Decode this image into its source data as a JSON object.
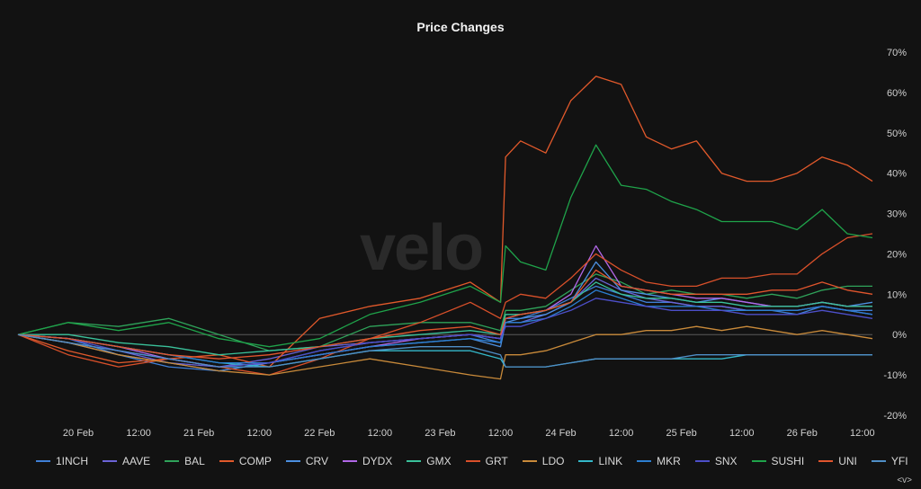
{
  "title": "Price Changes",
  "watermark": "velo",
  "corner_control": "<v>",
  "chart_data": {
    "type": "line",
    "title": "Price Changes",
    "xlabel": "",
    "ylabel": "",
    "ylim": [
      -20,
      70
    ],
    "y_ticks": [
      "70%",
      "60%",
      "50%",
      "40%",
      "30%",
      "20%",
      "10%",
      "0%",
      "-10%",
      "-20%"
    ],
    "x_ticks": [
      "20 Feb",
      "12:00",
      "21 Feb",
      "12:00",
      "22 Feb",
      "12:00",
      "23 Feb",
      "12:00",
      "24 Feb",
      "12:00",
      "25 Feb",
      "12:00",
      "26 Feb",
      "12:00"
    ],
    "x_tick_positions": [
      12,
      24,
      36,
      48,
      60,
      72,
      84,
      96,
      108,
      120,
      132,
      144,
      156,
      168
    ],
    "x_range": [
      0,
      170
    ],
    "x": [
      0,
      10,
      20,
      30,
      40,
      50,
      60,
      70,
      80,
      90,
      96,
      97,
      100,
      105,
      110,
      115,
      120,
      125,
      130,
      135,
      140,
      145,
      150,
      155,
      160,
      165,
      170
    ],
    "legend_position": "bottom",
    "series": [
      {
        "name": "1INCH",
        "color": "#3f7fd6",
        "values": [
          0,
          -1,
          -5,
          -8,
          -9,
          -7,
          -4,
          -2,
          -1,
          0,
          -2,
          4,
          4,
          6,
          9,
          12,
          10,
          8,
          8,
          7,
          7,
          6,
          6,
          5,
          7,
          6,
          6
        ]
      },
      {
        "name": "AAVE",
        "color": "#6b63d6",
        "values": [
          0,
          -2,
          -4,
          -7,
          -8,
          -6,
          -3,
          -2,
          -1,
          0,
          -1,
          3,
          3,
          5,
          8,
          14,
          11,
          9,
          8,
          7,
          7,
          6,
          6,
          6,
          7,
          6,
          5
        ]
      },
      {
        "name": "BAL",
        "color": "#2fa35a",
        "values": [
          0,
          3,
          2,
          4,
          0,
          -4,
          -3,
          2,
          3,
          3,
          1,
          6,
          6,
          7,
          11,
          15,
          13,
          10,
          11,
          10,
          10,
          9,
          10,
          9,
          11,
          12,
          12
        ]
      },
      {
        "name": "COMP",
        "color": "#e1592b",
        "values": [
          0,
          -4,
          -7,
          -6,
          -5,
          -8,
          4,
          7,
          9,
          13,
          8,
          44,
          48,
          45,
          58,
          64,
          62,
          49,
          46,
          48,
          40,
          38,
          38,
          40,
          44,
          42,
          38
        ]
      },
      {
        "name": "CRV",
        "color": "#4c8fe0",
        "values": [
          0,
          -2,
          -5,
          -7,
          -9,
          -7,
          -5,
          -3,
          -2,
          -1,
          -3,
          3,
          4,
          5,
          8,
          18,
          11,
          10,
          9,
          8,
          9,
          8,
          7,
          7,
          8,
          7,
          8
        ]
      },
      {
        "name": "DYDX",
        "color": "#b067e6",
        "values": [
          0,
          -1,
          -3,
          -6,
          -8,
          -7,
          -5,
          -3,
          -1,
          0,
          -1,
          4,
          5,
          6,
          10,
          22,
          12,
          11,
          10,
          9,
          9,
          8,
          7,
          7,
          8,
          7,
          7
        ]
      },
      {
        "name": "GMX",
        "color": "#3ac19a",
        "values": [
          0,
          0,
          -2,
          -3,
          -5,
          -4,
          -3,
          -1,
          0,
          1,
          0,
          5,
          5,
          6,
          8,
          13,
          10,
          9,
          9,
          8,
          8,
          7,
          7,
          7,
          8,
          7,
          7
        ]
      },
      {
        "name": "GRT",
        "color": "#d9502a",
        "values": [
          0,
          -5,
          -8,
          -6,
          -8,
          -10,
          -6,
          -1,
          3,
          8,
          4,
          8,
          10,
          9,
          14,
          20,
          16,
          13,
          12,
          12,
          14,
          14,
          15,
          15,
          20,
          24,
          25
        ]
      },
      {
        "name": "LDO",
        "color": "#c98a3a",
        "values": [
          0,
          -2,
          -5,
          -7,
          -9,
          -10,
          -8,
          -6,
          -8,
          -10,
          -11,
          -5,
          -5,
          -4,
          -2,
          0,
          0,
          1,
          1,
          2,
          1,
          2,
          1,
          0,
          1,
          0,
          -1
        ]
      },
      {
        "name": "LINK",
        "color": "#34b8c9",
        "values": [
          0,
          -1,
          -3,
          -5,
          -7,
          -8,
          -6,
          -4,
          -4,
          -4,
          -6,
          -8,
          -8,
          -8,
          -7,
          -6,
          -6,
          -6,
          -6,
          -6,
          -6,
          -5,
          -5,
          -5,
          -5,
          -5,
          -5
        ]
      },
      {
        "name": "MKR",
        "color": "#2c7ed1",
        "values": [
          0,
          -1,
          -3,
          -5,
          -7,
          -7,
          -5,
          -3,
          -2,
          -1,
          -2,
          3,
          3,
          4,
          7,
          11,
          9,
          7,
          7,
          7,
          6,
          6,
          6,
          6,
          7,
          6,
          5
        ]
      },
      {
        "name": "SNX",
        "color": "#4d4fc9",
        "values": [
          0,
          -1,
          -4,
          -6,
          -8,
          -7,
          -4,
          -2,
          -1,
          0,
          -1,
          2,
          2,
          4,
          6,
          9,
          8,
          7,
          6,
          6,
          6,
          5,
          5,
          5,
          6,
          5,
          4
        ]
      },
      {
        "name": "SUSHI",
        "color": "#1fa34a",
        "values": [
          0,
          3,
          1,
          3,
          -1,
          -3,
          -1,
          5,
          8,
          12,
          8,
          22,
          18,
          16,
          34,
          47,
          37,
          36,
          33,
          31,
          28,
          28,
          28,
          26,
          31,
          25,
          24
        ]
      },
      {
        "name": "UNI",
        "color": "#e0552d",
        "values": [
          0,
          -1,
          -3,
          -5,
          -6,
          -5,
          -3,
          -1,
          1,
          2,
          0,
          4,
          5,
          6,
          8,
          16,
          12,
          11,
          10,
          10,
          10,
          10,
          11,
          11,
          13,
          11,
          10
        ]
      },
      {
        "name": "YFI",
        "color": "#4f8ec7",
        "values": [
          0,
          -2,
          -4,
          -6,
          -8,
          -8,
          -6,
          -4,
          -3,
          -3,
          -5,
          -8,
          -8,
          -8,
          -7,
          -6,
          -6,
          -6,
          -6,
          -5,
          -5,
          -5,
          -5,
          -5,
          -5,
          -5,
          -5
        ]
      }
    ]
  }
}
